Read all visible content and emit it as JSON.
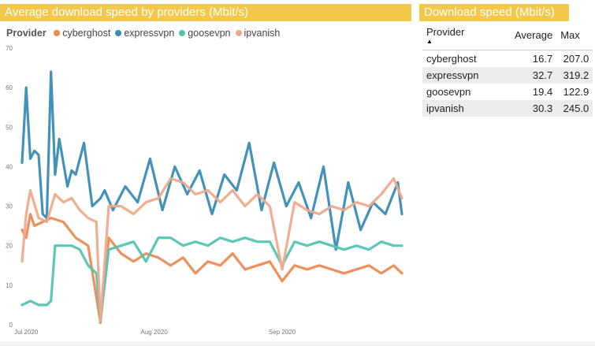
{
  "chart_panel": {
    "title": "Average download speed by providers (Mbit/s)"
  },
  "table_panel": {
    "title": "Download speed (Mbit/s)",
    "columns": [
      "Provider",
      "Average",
      "Max"
    ],
    "sort_icon": "triangle-up-icon",
    "rows": [
      {
        "provider": "cyberghost",
        "average": "16.7",
        "max": "207.0"
      },
      {
        "provider": "expressvpn",
        "average": "32.7",
        "max": "319.2"
      },
      {
        "provider": "goosevpn",
        "average": "19.4",
        "max": "122.9"
      },
      {
        "provider": "ipvanish",
        "average": "30.3",
        "max": "245.0"
      }
    ]
  },
  "chart_data": {
    "type": "line",
    "title": "Average download speed by providers (Mbit/s)",
    "legend_title": "Provider",
    "legend_position": "top-left",
    "xlabel": "",
    "ylabel": "",
    "grid": false,
    "ylim": [
      0,
      70
    ],
    "y_ticks": [
      0,
      10,
      20,
      30,
      40,
      50,
      60,
      70
    ],
    "x_ticks": [
      {
        "label": "Jul 2020",
        "date": "2020-07-01"
      },
      {
        "label": "Aug 2020",
        "date": "2020-08-01"
      },
      {
        "label": "Sep 2020",
        "date": "2020-09-01"
      }
    ],
    "x_start": "2020-06-30",
    "series": [
      {
        "name": "cyberghost",
        "color": "#ed8a52",
        "x": [
          "2020-06-30",
          "2020-07-01",
          "2020-07-02",
          "2020-07-03",
          "2020-07-05",
          "2020-07-07",
          "2020-07-10",
          "2020-07-13",
          "2020-07-16",
          "2020-07-19",
          "2020-07-21",
          "2020-07-24",
          "2020-07-27",
          "2020-07-30",
          "2020-08-02",
          "2020-08-05",
          "2020-08-08",
          "2020-08-11",
          "2020-08-14",
          "2020-08-17",
          "2020-08-20",
          "2020-08-23",
          "2020-08-26",
          "2020-08-29",
          "2020-09-01",
          "2020-09-04",
          "2020-09-07",
          "2020-09-10",
          "2020-09-13",
          "2020-09-16",
          "2020-09-19",
          "2020-09-22",
          "2020-09-25",
          "2020-09-28",
          "2020-09-30"
        ],
        "y": [
          24,
          22,
          28,
          25,
          26,
          27,
          26,
          22,
          20,
          0.5,
          22,
          18,
          16,
          18,
          17,
          15,
          17,
          13,
          16,
          15,
          18,
          14,
          15,
          16,
          11,
          15,
          14,
          15,
          14,
          13,
          14,
          15,
          13,
          15,
          13
        ]
      },
      {
        "name": "expressvpn",
        "color": "#3a8cb5",
        "x": [
          "2020-06-30",
          "2020-07-01",
          "2020-07-02",
          "2020-07-03",
          "2020-07-04",
          "2020-07-05",
          "2020-07-06",
          "2020-07-07",
          "2020-07-08",
          "2020-07-09",
          "2020-07-10",
          "2020-07-11",
          "2020-07-12",
          "2020-07-13",
          "2020-07-15",
          "2020-07-17",
          "2020-07-19",
          "2020-07-20",
          "2020-07-22",
          "2020-07-25",
          "2020-07-28",
          "2020-07-31",
          "2020-08-03",
          "2020-08-06",
          "2020-08-09",
          "2020-08-12",
          "2020-08-15",
          "2020-08-18",
          "2020-08-21",
          "2020-08-24",
          "2020-08-27",
          "2020-08-30",
          "2020-09-02",
          "2020-09-05",
          "2020-09-08",
          "2020-09-11",
          "2020-09-14",
          "2020-09-17",
          "2020-09-20",
          "2020-09-23",
          "2020-09-26",
          "2020-09-29",
          "2020-09-30"
        ],
        "y": [
          41,
          60,
          42,
          44,
          43,
          28,
          27,
          64,
          38,
          47,
          41,
          35,
          39,
          38,
          46,
          30,
          32,
          34,
          29,
          35,
          31,
          42,
          29,
          40,
          33,
          39,
          28,
          38,
          34,
          46,
          29,
          41,
          30,
          36,
          27,
          40,
          19,
          36,
          24,
          31,
          28,
          36,
          28
        ]
      },
      {
        "name": "goosevpn",
        "color": "#52c4b2",
        "x": [
          "2020-06-30",
          "2020-07-02",
          "2020-07-04",
          "2020-07-06",
          "2020-07-07",
          "2020-07-08",
          "2020-07-10",
          "2020-07-12",
          "2020-07-14",
          "2020-07-16",
          "2020-07-18",
          "2020-07-19",
          "2020-07-21",
          "2020-07-24",
          "2020-07-27",
          "2020-07-30",
          "2020-08-02",
          "2020-08-05",
          "2020-08-08",
          "2020-08-11",
          "2020-08-14",
          "2020-08-17",
          "2020-08-20",
          "2020-08-23",
          "2020-08-26",
          "2020-08-29",
          "2020-09-01",
          "2020-09-04",
          "2020-09-07",
          "2020-09-10",
          "2020-09-13",
          "2020-09-16",
          "2020-09-19",
          "2020-09-22",
          "2020-09-25",
          "2020-09-28",
          "2020-09-30"
        ],
        "y": [
          5,
          6,
          5,
          5,
          6,
          20,
          20,
          20,
          19,
          15,
          13,
          1,
          19,
          20,
          21,
          16,
          22,
          22,
          20,
          21,
          20,
          22,
          21,
          22,
          21,
          21,
          15,
          21,
          20,
          21,
          20,
          19,
          20,
          19,
          21,
          20,
          20
        ]
      },
      {
        "name": "ipvanish",
        "color": "#f0a98a",
        "x": [
          "2020-06-30",
          "2020-07-01",
          "2020-07-02",
          "2020-07-04",
          "2020-07-06",
          "2020-07-08",
          "2020-07-10",
          "2020-07-12",
          "2020-07-14",
          "2020-07-16",
          "2020-07-18",
          "2020-07-19",
          "2020-07-21",
          "2020-07-24",
          "2020-07-27",
          "2020-07-30",
          "2020-08-02",
          "2020-08-05",
          "2020-08-08",
          "2020-08-11",
          "2020-08-14",
          "2020-08-17",
          "2020-08-20",
          "2020-08-23",
          "2020-08-26",
          "2020-08-29",
          "2020-09-01",
          "2020-09-04",
          "2020-09-07",
          "2020-09-10",
          "2020-09-13",
          "2020-09-16",
          "2020-09-19",
          "2020-09-22",
          "2020-09-25",
          "2020-09-28",
          "2020-09-30"
        ],
        "y": [
          16,
          28,
          34,
          27,
          26,
          33,
          31,
          32,
          29,
          27,
          26,
          1,
          30,
          30,
          28,
          31,
          32,
          37,
          36,
          33,
          34,
          31,
          34,
          30,
          33,
          30,
          14,
          31,
          29,
          28,
          30,
          29,
          31,
          30,
          33,
          37,
          32
        ]
      }
    ]
  }
}
